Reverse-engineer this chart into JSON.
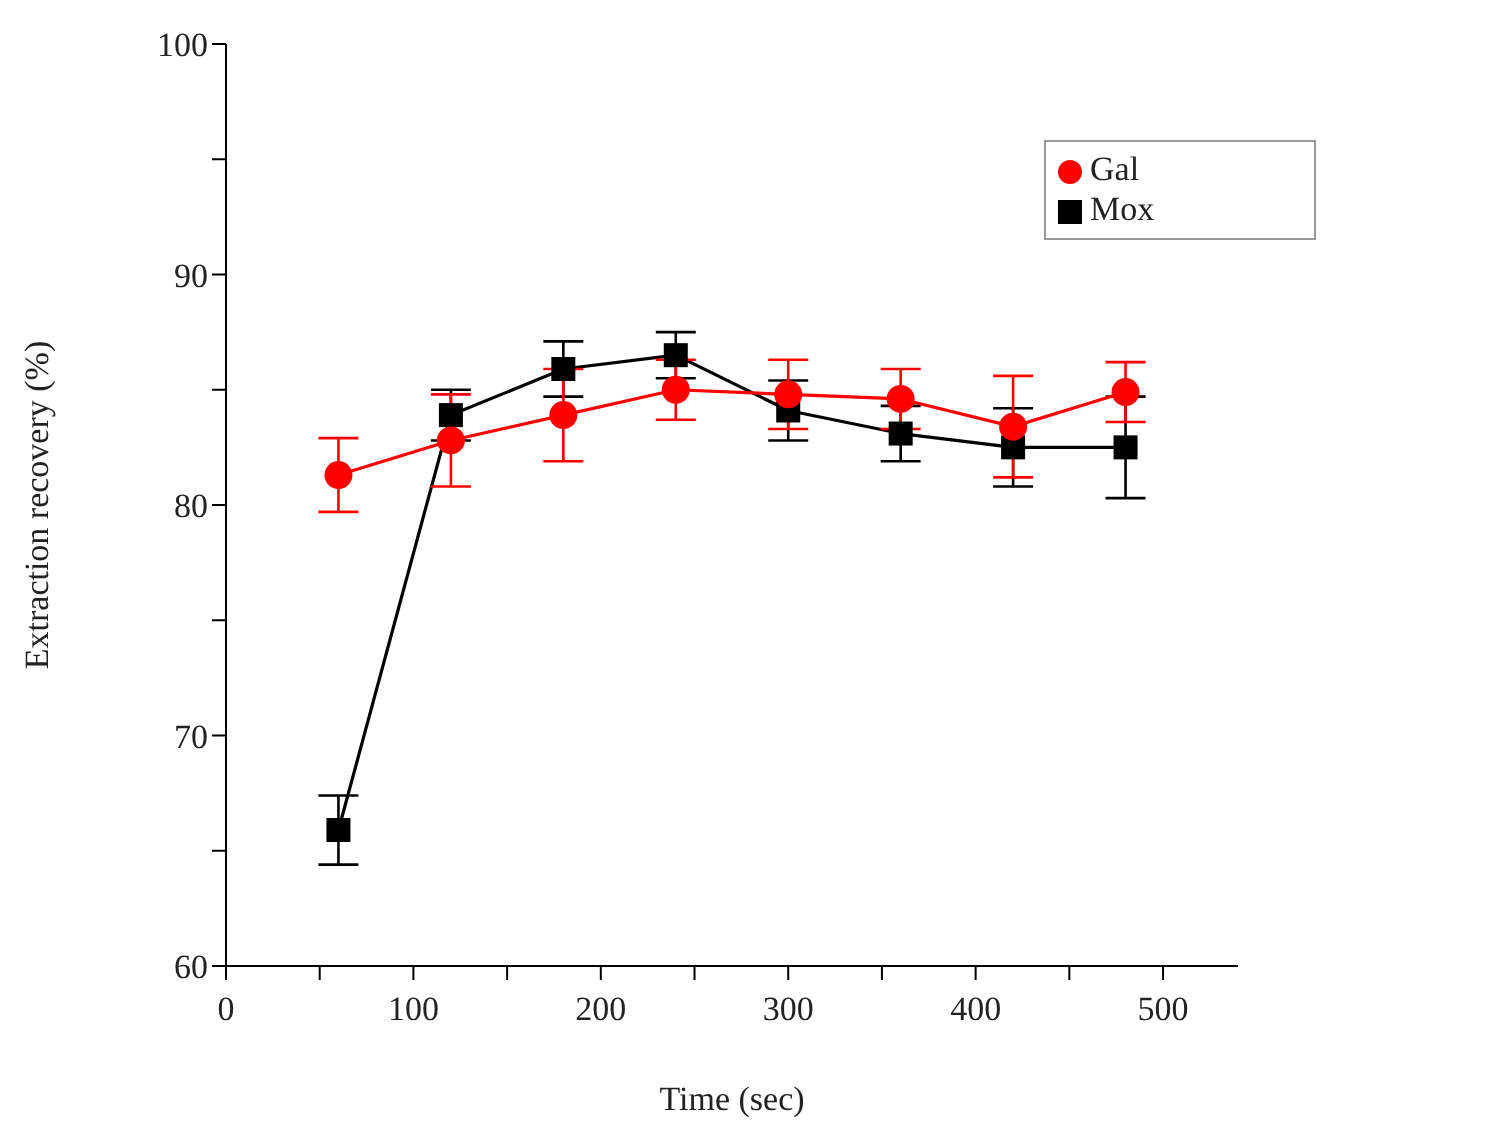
{
  "chart_data": {
    "type": "line",
    "xlabel": "Time (sec)",
    "ylabel": "Extraction recovery (%)",
    "x": [
      60,
      120,
      180,
      240,
      300,
      360,
      420,
      480
    ],
    "series": [
      {
        "name": "Mox",
        "color": "#000000",
        "marker": "square",
        "values": [
          65.9,
          83.9,
          85.9,
          86.5,
          84.1,
          83.1,
          82.5,
          82.5
        ],
        "errors": [
          1.5,
          1.1,
          1.2,
          1.0,
          1.3,
          1.2,
          1.7,
          2.2
        ]
      },
      {
        "name": "Gal",
        "color": "#ff0000",
        "marker": "circle",
        "values": [
          81.3,
          82.8,
          83.9,
          85.0,
          84.8,
          84.6,
          83.4,
          84.9
        ],
        "errors": [
          1.6,
          2.0,
          2.0,
          1.3,
          1.5,
          1.3,
          2.2,
          1.3
        ]
      }
    ],
    "xlim": [
      0,
      540
    ],
    "xticks": [
      0,
      {
        "value": 50,
        "label": null
      },
      100,
      {
        "value": 150,
        "label": null
      },
      200,
      {
        "value": 250,
        "label": null
      },
      300,
      {
        "value": 350,
        "label": null
      },
      400,
      {
        "value": 450,
        "label": null
      },
      500
    ],
    "ylim": [
      60,
      100
    ],
    "yticks": [
      60,
      {
        "value": 65,
        "label": null
      },
      70,
      {
        "value": 75,
        "label": null
      },
      80,
      {
        "value": 85,
        "label": null
      },
      90,
      {
        "value": 95,
        "label": null
      },
      100
    ],
    "grid": false,
    "legend": "top right",
    "line_style": "solid"
  }
}
